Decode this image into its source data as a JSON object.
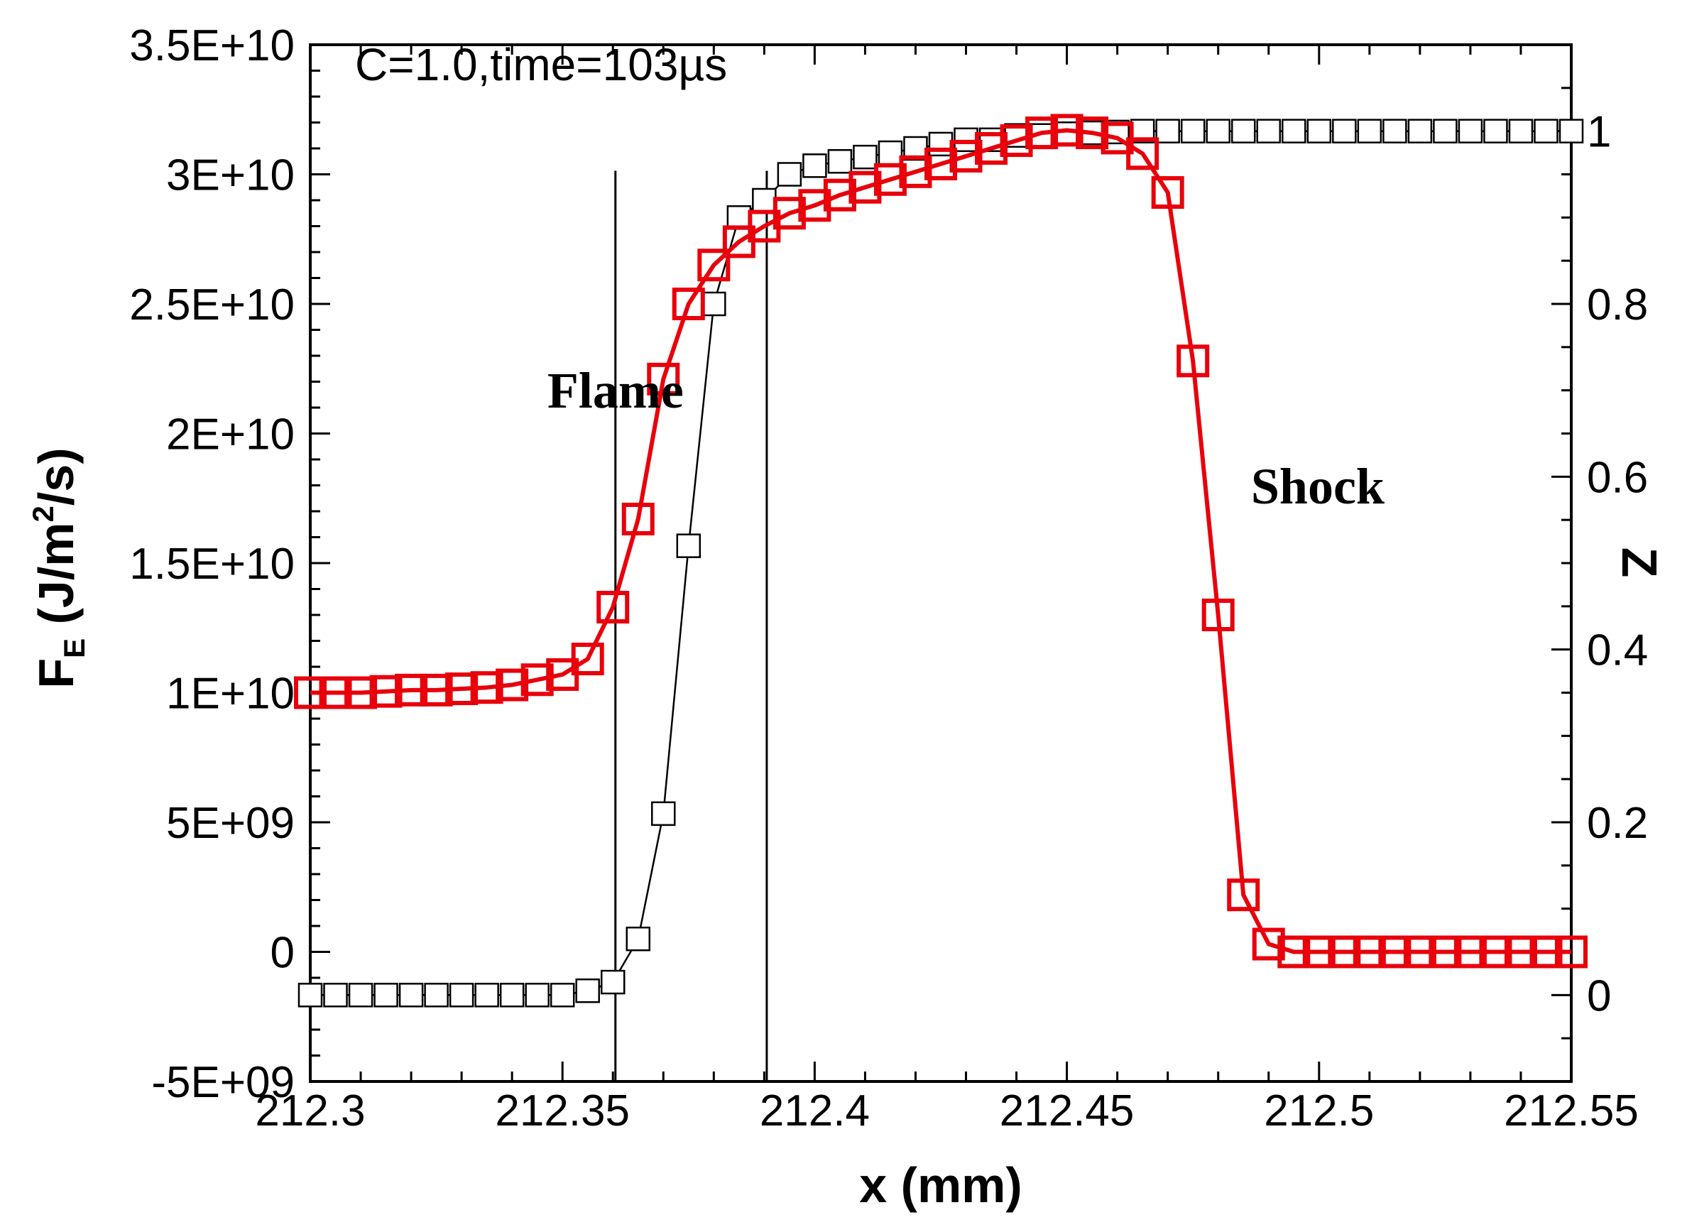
{
  "chart_data": {
    "type": "line",
    "title": "C=1.0,time=103µs",
    "xlabel": "x (mm)",
    "ylabel_left": {
      "main": "F",
      "sub": "E",
      "rest1": " (J/m",
      "sup": "2",
      "rest2": "/s)"
    },
    "ylabel_right": "Z",
    "xlim": [
      212.3,
      212.55
    ],
    "ylim_left": [
      -5000000000.0,
      35000000000.0
    ],
    "ylim_right": [
      -0.1,
      1.1
    ],
    "x_ticks": [
      {
        "value": 212.3,
        "label": "212.3"
      },
      {
        "value": 212.35,
        "label": "212.35"
      },
      {
        "value": 212.4,
        "label": "212.4"
      },
      {
        "value": 212.45,
        "label": "212.45"
      },
      {
        "value": 212.5,
        "label": "212.5"
      },
      {
        "value": 212.55,
        "label": "212.55"
      }
    ],
    "y_left_ticks": [
      {
        "value": -5000000000.0,
        "label": "-5E+09"
      },
      {
        "value": 0,
        "label": "0"
      },
      {
        "value": 5000000000.0,
        "label": "5E+09"
      },
      {
        "value": 10000000000.0,
        "label": "1E+10"
      },
      {
        "value": 15000000000.0,
        "label": "1.5E+10"
      },
      {
        "value": 20000000000.0,
        "label": "2E+10"
      },
      {
        "value": 25000000000.0,
        "label": "2.5E+10"
      },
      {
        "value": 30000000000.0,
        "label": "3E+10"
      },
      {
        "value": 35000000000.0,
        "label": "3.5E+10"
      }
    ],
    "y_right_ticks": [
      {
        "value": 0,
        "label": "0"
      },
      {
        "value": 0.2,
        "label": "0.2"
      },
      {
        "value": 0.4,
        "label": "0.4"
      },
      {
        "value": 0.6,
        "label": "0.6"
      },
      {
        "value": 0.8,
        "label": "0.8"
      },
      {
        "value": 1.0,
        "label": "1"
      }
    ],
    "vlines": [
      212.3605,
      212.3905
    ],
    "annotations": [
      {
        "text": "Flame",
        "x": 212.347,
        "y": 21000000000.0
      },
      {
        "text": "Shock",
        "x": 212.4865,
        "y": 17300000000.0
      }
    ],
    "series": [
      {
        "name": "F_E",
        "axis": "left",
        "color": "#e8000b",
        "marker": "square",
        "x": [
          212.3,
          212.305,
          212.31,
          212.315,
          212.32,
          212.325,
          212.33,
          212.335,
          212.34,
          212.345,
          212.35,
          212.355,
          212.36,
          212.365,
          212.37,
          212.375,
          212.38,
          212.385,
          212.39,
          212.395,
          212.4,
          212.405,
          212.41,
          212.415,
          212.42,
          212.425,
          212.43,
          212.435,
          212.44,
          212.445,
          212.45,
          212.455,
          212.46,
          212.465,
          212.47,
          212.475,
          212.48,
          212.485,
          212.49,
          212.495,
          212.5,
          212.505,
          212.51,
          212.515,
          212.52,
          212.525,
          212.53,
          212.535,
          212.54,
          212.545,
          212.55
        ],
        "values": [
          10000000000.0,
          10000000000.0,
          10000000000.0,
          10050000000.0,
          10100000000.0,
          10100000000.0,
          10150000000.0,
          10200000000.0,
          10300000000.0,
          10500000000.0,
          10700000000.0,
          11300000000.0,
          13300000000.0,
          16700000000.0,
          22100000000.0,
          25000000000.0,
          26500000000.0,
          27400000000.0,
          28000000000.0,
          28500000000.0,
          28800000000.0,
          29200000000.0,
          29500000000.0,
          29800000000.0,
          30100000000.0,
          30400000000.0,
          30700000000.0,
          31000000000.0,
          31300000000.0,
          31600000000.0,
          31700000000.0,
          31600000000.0,
          31400000000.0,
          30800000000.0,
          29300000000.0,
          22800000000.0,
          13000000000.0,
          2200000000.0,
          300000000.0,
          0,
          0,
          0,
          0,
          0,
          0,
          0,
          0,
          0,
          0,
          0,
          0
        ]
      },
      {
        "name": "Z",
        "axis": "right",
        "color": "#000000",
        "marker": "square",
        "x": [
          212.3,
          212.305,
          212.31,
          212.315,
          212.32,
          212.325,
          212.33,
          212.335,
          212.34,
          212.345,
          212.35,
          212.355,
          212.36,
          212.365,
          212.37,
          212.375,
          212.38,
          212.385,
          212.39,
          212.395,
          212.4,
          212.405,
          212.41,
          212.415,
          212.42,
          212.425,
          212.43,
          212.435,
          212.44,
          212.445,
          212.45,
          212.455,
          212.46,
          212.465,
          212.47,
          212.475,
          212.48,
          212.485,
          212.49,
          212.495,
          212.5,
          212.505,
          212.51,
          212.515,
          212.52,
          212.525,
          212.53,
          212.535,
          212.54,
          212.545,
          212.55
        ],
        "values": [
          0,
          0,
          0,
          0,
          0,
          0,
          0,
          0,
          0,
          0,
          0.0,
          0.005,
          0.015,
          0.065,
          0.21,
          0.52,
          0.8,
          0.9,
          0.92,
          0.95,
          0.96,
          0.965,
          0.97,
          0.975,
          0.98,
          0.985,
          0.99,
          0.99,
          0.995,
          0.995,
          0.997,
          0.998,
          0.999,
          1.0,
          1.0,
          1.0,
          1.0,
          1.0,
          1.0,
          1.0,
          1.0,
          1.0,
          1.0,
          1.0,
          1.0,
          1.0,
          1.0,
          1.0,
          1.0,
          1.0,
          1.0
        ]
      }
    ]
  }
}
